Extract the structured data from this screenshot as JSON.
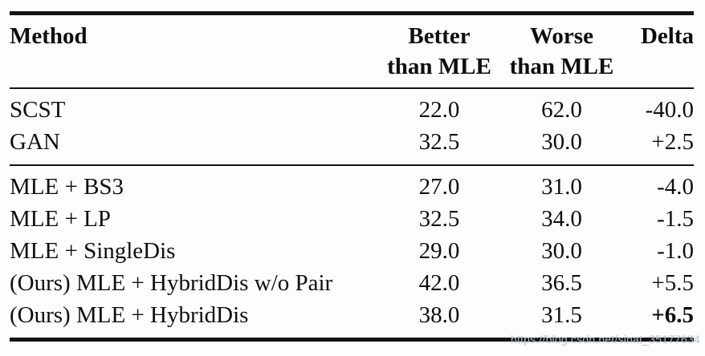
{
  "table": {
    "header": {
      "method": "Method",
      "better_line1": "Better",
      "better_line2": "than MLE",
      "worse_line1": "Worse",
      "worse_line2": "than MLE",
      "delta": "Delta"
    },
    "groups": [
      {
        "rows": [
          {
            "method": "SCST",
            "better": "22.0",
            "worse": "62.0",
            "delta": "-40.0"
          },
          {
            "method": "GAN",
            "better": "32.5",
            "worse": "30.0",
            "delta": "+2.5"
          }
        ]
      },
      {
        "rows": [
          {
            "method": "MLE + BS3",
            "better": "27.0",
            "worse": "31.0",
            "delta": "-4.0"
          },
          {
            "method": "MLE + LP",
            "better": "32.5",
            "worse": "34.0",
            "delta": "-1.5"
          },
          {
            "method": "MLE + SingleDis",
            "better": "29.0",
            "worse": "30.0",
            "delta": "-1.0"
          },
          {
            "method": "(Ours) MLE + HybridDis w/o Pair",
            "better": "42.0",
            "worse": "36.5",
            "delta": "+5.5"
          },
          {
            "method": "(Ours) MLE + HybridDis",
            "better": "38.0",
            "worse": "31.5",
            "delta": "+6.5"
          }
        ]
      }
    ]
  },
  "watermark": {
    "text": "https://blog.csdn.net/sinat_35177634",
    "color": "#b5bfc9"
  }
}
